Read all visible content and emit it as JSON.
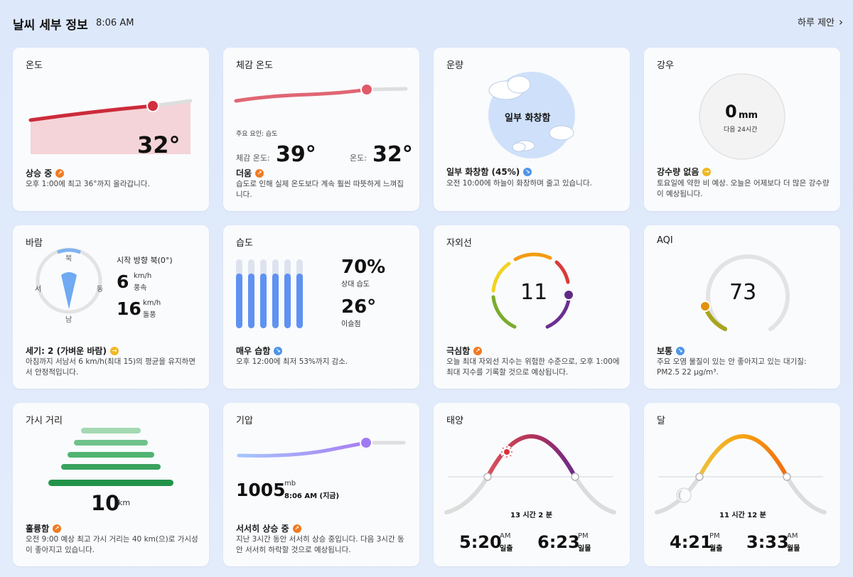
{
  "header": {
    "title": "날씨 세부 정보",
    "time": "8:06 AM",
    "suggest": "하루 제안"
  },
  "colors": {
    "accent_up": "#f07b22",
    "accent_down": "#4e95e8",
    "flat": "#f0b824"
  },
  "temp": {
    "title": "온도",
    "value": "32°",
    "summary": "상승 중",
    "desc": "오후 1:00에 최고 36°까지 올라갑니다."
  },
  "feels": {
    "title": "체감 온도",
    "factor": "주요 요인: 습도",
    "feels_label": "체감 온도:",
    "feels_value": "39°",
    "temp_label": "온도:",
    "temp_value": "32°",
    "summary": "더움",
    "desc": "습도로 인해 실제 온도보다 계속 훨씬 따뜻하게 느껴집니다."
  },
  "cloud": {
    "title": "운량",
    "center": "일부 화창함",
    "summary": "일부 화창함 (45%)",
    "desc": "오전 10:00에 하늘이 화창하며 줄고 있습니다."
  },
  "rain": {
    "title": "강우",
    "value": "0",
    "unit": "mm",
    "sub": "다음 24시간",
    "summary": "강수량 없음",
    "desc": "토요일에 약한 비 예상. 오늘은 어제보다 더 많은 강수량이 예상됩니다."
  },
  "wind": {
    "title": "바람",
    "n": "북",
    "s": "남",
    "e": "동",
    "w": "서",
    "start_dir": "시작 방향 북(0°)",
    "speed": "6",
    "speed_unit": "km/h",
    "speed_label": "풍속",
    "gust": "16",
    "gust_unit": "km/h",
    "gust_label": "돌풍",
    "summary": "세기: 2 (가벼운 바람)",
    "desc": "아침까지 서남서 6 km/h(최대 15)의 평균을 유지하면서 안정적입니다."
  },
  "humid": {
    "title": "습도",
    "rh": "70%",
    "rh_label": "상대 습도",
    "dew": "26°",
    "dew_label": "이슬점",
    "summary": "매우 습함",
    "desc": "오후 12:00에 최저 53%까지 감소.",
    "bars": [
      0.97,
      0.97,
      0.97,
      0.97,
      0.97,
      0.97
    ]
  },
  "uv": {
    "title": "자외선",
    "value": "11",
    "summary": "극심함",
    "desc": "오늘 최대 자외선 지수는 위험한 수준으로, 오후 1:00에 최대 지수를 기록할 것으로 예상됩니다."
  },
  "aqi": {
    "title": "AQI",
    "value": "73",
    "summary": "보통",
    "desc": "주요 오염 물질이 있는 안 좋아지고 있는 대기질: PM2.5 22 μg/m³."
  },
  "vis": {
    "title": "가시 거리",
    "value": "10",
    "unit": "km",
    "summary": "훌륭함",
    "desc": "오전 9:00 예상 최고 가시 거리는 40 km(으)로 가시성이 좋아지고 있습니다."
  },
  "press": {
    "title": "기압",
    "value": "1005",
    "unit": "mb",
    "time": "8:06 AM (지금)",
    "summary": "서서히 상승 중",
    "desc": "지난 3시간 동안 서서히 상승 중입니다. 다음 3시간 동안 서서히 하락할 것으로 예상됩니다."
  },
  "sun": {
    "title": "태양",
    "duration": "13 시간 2 분",
    "rise": "5:20",
    "rise_ampm": "AM",
    "rise_label": "일출",
    "set": "6:23",
    "set_ampm": "PM",
    "set_label": "일몰"
  },
  "moon": {
    "title": "달",
    "duration": "11 시간 12 분",
    "rise": "4:21",
    "rise_ampm": "PM",
    "rise_label": "월출",
    "set": "3:33",
    "set_ampm": "AM",
    "set_label": "월몰"
  }
}
